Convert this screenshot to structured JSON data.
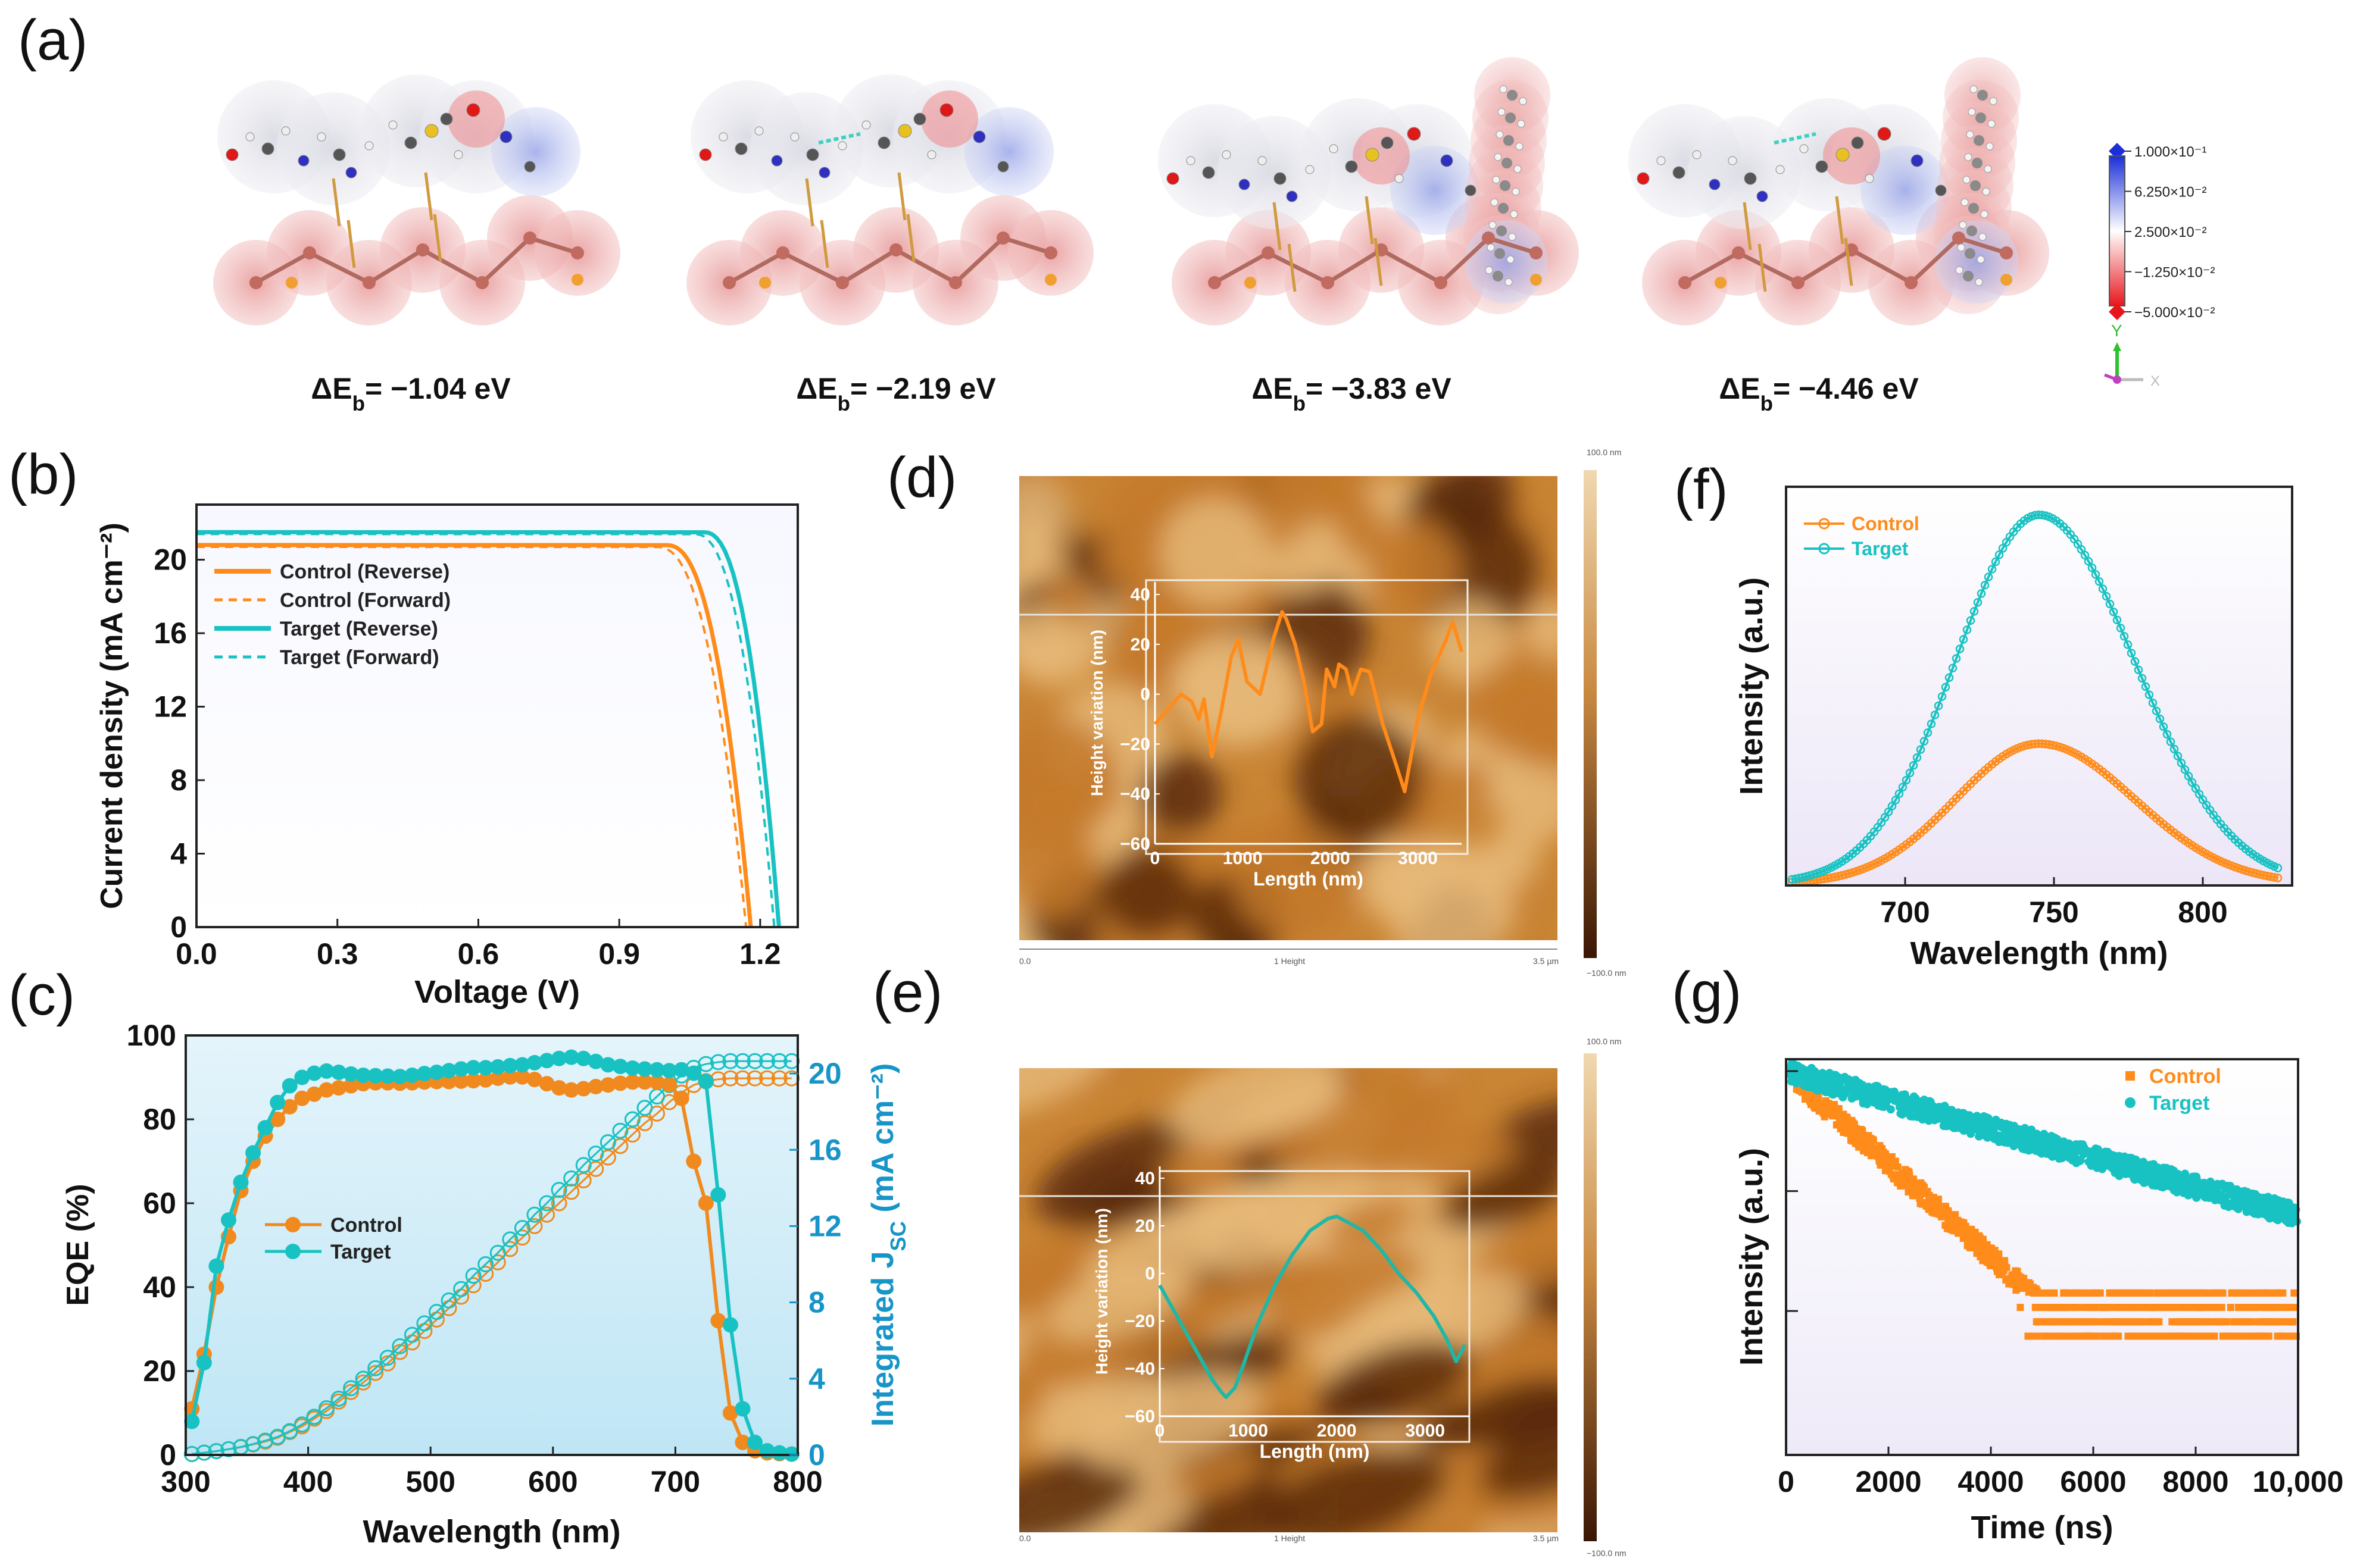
{
  "panel_labels": [
    "(a)",
    "(b)",
    "(c)",
    "(d)",
    "(e)",
    "(f)",
    "(g)"
  ],
  "molecules": {
    "energies": [
      "ΔE_b= −1.04 eV",
      "ΔE_b= −2.19 eV",
      "ΔE_b= −3.83 eV",
      "ΔE_b= −4.46 eV"
    ],
    "colorbar_ticks": [
      "1.000×10⁻¹",
      "6.250×10⁻²",
      "2.500×10⁻²",
      "−1.250×10⁻²",
      "−5.000×10⁻²"
    ],
    "axis_labels": [
      "Y",
      "X"
    ]
  },
  "afm": {
    "scale_max": "100.0 nm",
    "scale_min": "−100.0 nm",
    "footer_left": "0.0",
    "footer_mid": "1 Height",
    "footer_right": "3.5 µm",
    "colors": {
      "light": "#e6b878",
      "mid": "#c47a2c",
      "dark": "#5a2a08"
    }
  },
  "chart_data": [
    {
      "panel": "(b)",
      "type": "line",
      "xlabel": "Voltage (V)",
      "ylabel": "Current density (mA cm⁻²)",
      "xlim": [
        0,
        1.28
      ],
      "ylim": [
        0,
        23
      ],
      "xticks": [
        "0.0",
        "0.3",
        "0.6",
        "0.9",
        "1.2"
      ],
      "yticks": [
        "0",
        "4",
        "8",
        "12",
        "16",
        "20"
      ],
      "series": [
        {
          "name": "Control (Reverse)",
          "color": "#ff8c1a",
          "style": "solid",
          "jsc": 20.8,
          "voc": 1.18,
          "knee_v": 1.0
        },
        {
          "name": "Control (Forward)",
          "color": "#ff8c1a",
          "style": "dashed",
          "jsc": 20.7,
          "voc": 1.17,
          "knee_v": 0.98
        },
        {
          "name": "Target (Reverse)",
          "color": "#19c2c2",
          "style": "solid",
          "jsc": 21.5,
          "voc": 1.24,
          "knee_v": 1.08
        },
        {
          "name": "Target (Forward)",
          "color": "#19c2c2",
          "style": "dashed",
          "jsc": 21.4,
          "voc": 1.23,
          "knee_v": 1.06
        }
      ]
    },
    {
      "panel": "(c)",
      "type": "line",
      "xlabel": "Wavelength (nm)",
      "ylabel": "EQE (%)",
      "ylabel_right": "Integrated J_SC (mA cm⁻²)",
      "xlim": [
        300,
        800
      ],
      "ylim": [
        0,
        100
      ],
      "ylim_right": [
        0,
        22
      ],
      "xticks": [
        "300",
        "400",
        "500",
        "600",
        "700",
        "800"
      ],
      "yticks": [
        "0",
        "20",
        "40",
        "60",
        "80",
        "100"
      ],
      "yticks_right": [
        "0",
        "4",
        "8",
        "12",
        "16",
        "20"
      ],
      "x": [
        305,
        315,
        325,
        335,
        345,
        355,
        365,
        375,
        385,
        395,
        405,
        415,
        425,
        435,
        445,
        455,
        465,
        475,
        485,
        495,
        505,
        515,
        525,
        535,
        545,
        555,
        565,
        575,
        585,
        595,
        605,
        615,
        625,
        635,
        645,
        655,
        665,
        675,
        685,
        695,
        705,
        715,
        725,
        735,
        745,
        755,
        765,
        775,
        785,
        795
      ],
      "series": [
        {
          "name": "Control",
          "color": "#f08a1e",
          "eqe": [
            11,
            24,
            40,
            52,
            63,
            70,
            76,
            80,
            83,
            85,
            86,
            87,
            87.5,
            88,
            88.5,
            88.7,
            88.7,
            88.6,
            88.7,
            88.9,
            89,
            89,
            89.1,
            89.2,
            89.4,
            89.8,
            90.1,
            90.1,
            89.5,
            88.5,
            87.5,
            87,
            87.3,
            87.8,
            88.2,
            88.6,
            88.9,
            88.9,
            88.8,
            88.3,
            85,
            70,
            60,
            32,
            10,
            3,
            1,
            0.5,
            0.3,
            0.2
          ],
          "jsc": [
            0.05,
            0.12,
            0.2,
            0.3,
            0.4,
            0.55,
            0.7,
            0.9,
            1.2,
            1.5,
            1.9,
            2.3,
            2.8,
            3.3,
            3.8,
            4.3,
            4.8,
            5.4,
            5.9,
            6.5,
            7.1,
            7.7,
            8.3,
            8.9,
            9.5,
            10.1,
            10.8,
            11.4,
            12.0,
            12.6,
            13.2,
            13.8,
            14.4,
            15.0,
            15.6,
            16.2,
            16.8,
            17.4,
            17.9,
            18.5,
            19.0,
            19.4,
            19.6,
            19.7,
            19.75,
            19.75,
            19.75,
            19.75,
            19.75,
            19.75
          ]
        },
        {
          "name": "Target",
          "color": "#19c2c2",
          "eqe": [
            8,
            22,
            45,
            56,
            65,
            72,
            78,
            84,
            88,
            90,
            91,
            91.5,
            91.2,
            90.8,
            90.5,
            90.4,
            90.3,
            90.2,
            90.5,
            90.9,
            91.2,
            91.6,
            92,
            92.3,
            92.3,
            92.5,
            92.8,
            93,
            93.5,
            94,
            94.5,
            94.8,
            94.5,
            93.8,
            93,
            92.6,
            92.2,
            92,
            91.8,
            91.6,
            91.8,
            91,
            89,
            62,
            31,
            11,
            3,
            1,
            0.5,
            0.2
          ],
          "jsc": [
            0.05,
            0.12,
            0.2,
            0.3,
            0.42,
            0.57,
            0.75,
            0.95,
            1.25,
            1.6,
            2.0,
            2.45,
            2.95,
            3.5,
            4.0,
            4.55,
            5.1,
            5.7,
            6.3,
            6.9,
            7.5,
            8.1,
            8.7,
            9.4,
            10.0,
            10.6,
            11.3,
            11.9,
            12.6,
            13.2,
            13.9,
            14.5,
            15.2,
            15.8,
            16.4,
            17.0,
            17.6,
            18.2,
            18.8,
            19.4,
            19.9,
            20.3,
            20.5,
            20.6,
            20.65,
            20.65,
            20.65,
            20.65,
            20.65,
            20.65
          ]
        }
      ]
    },
    {
      "panel": "(d)",
      "type": "line",
      "xlabel": "Length (nm)",
      "ylabel": "Height variation (nm)",
      "xlim": [
        0,
        3500
      ],
      "ylim": [
        -60,
        45
      ],
      "xticks": [
        "0",
        "1000",
        "2000",
        "3000"
      ],
      "yticks": [
        "−60",
        "−40",
        "−20",
        "0",
        "20",
        "40"
      ],
      "series": [
        {
          "color": "#ff8c1a",
          "x": [
            0,
            150,
            300,
            420,
            500,
            560,
            650,
            750,
            870,
            950,
            1050,
            1200,
            1350,
            1450,
            1500,
            1600,
            1700,
            1800,
            1900,
            1960,
            2050,
            2100,
            2180,
            2250,
            2350,
            2450,
            2600,
            2750,
            2850,
            3000,
            3150,
            3300,
            3400,
            3500
          ],
          "y": [
            -12,
            -6,
            0,
            -3,
            -10,
            -2,
            -25,
            -8,
            15,
            22,
            5,
            0,
            22,
            33,
            30,
            20,
            5,
            -15,
            -12,
            10,
            3,
            12,
            10,
            0,
            10,
            9,
            -12,
            -28,
            -39,
            -10,
            8,
            20,
            29,
            17
          ]
        }
      ]
    },
    {
      "panel": "(e)",
      "type": "line",
      "xlabel": "Length (nm)",
      "ylabel": "Height variation (nm)",
      "xlim": [
        0,
        3500
      ],
      "ylim": [
        -60,
        45
      ],
      "xticks": [
        "0",
        "1000",
        "2000",
        "3000"
      ],
      "yticks": [
        "−60",
        "−40",
        "−20",
        "0",
        "20",
        "40"
      ],
      "series": [
        {
          "color": "#1fb7a6",
          "x": [
            0,
            150,
            300,
            450,
            600,
            700,
            750,
            850,
            950,
            1100,
            1300,
            1500,
            1700,
            1900,
            2000,
            2100,
            2300,
            2500,
            2700,
            2900,
            3100,
            3250,
            3350,
            3450
          ],
          "y": [
            -5,
            -15,
            -25,
            -35,
            -45,
            -50,
            -52,
            -48,
            -38,
            -22,
            -5,
            8,
            18,
            23,
            24,
            22,
            18,
            10,
            0,
            -8,
            -18,
            -28,
            -37,
            -30
          ]
        }
      ]
    },
    {
      "panel": "(f)",
      "type": "scatter",
      "xlabel": "Wavelength (nm)",
      "ylabel": "Intensity (a.u.)",
      "xlim": [
        660,
        830
      ],
      "ylim": [
        0,
        1.08
      ],
      "xticks": [
        "700",
        "750",
        "800"
      ],
      "series": [
        {
          "name": "Control",
          "color": "#ff8c1a",
          "peak_nm": 745,
          "peak": 0.38
        },
        {
          "name": "Target",
          "color": "#19c2c2",
          "peak_nm": 745,
          "peak": 1.0
        }
      ]
    },
    {
      "panel": "(g)",
      "type": "scatter",
      "xlabel": "Time (ns)",
      "ylabel": "Intensity (a.u.)",
      "xlim": [
        0,
        10000
      ],
      "yscale": "log",
      "xticks": [
        "0",
        "2000",
        "4000",
        "6000",
        "8000",
        "10,000"
      ],
      "series": [
        {
          "name": "Control",
          "color": "#ff8c1a",
          "tau_ns": 1400,
          "marker": "square"
        },
        {
          "name": "Target",
          "color": "#19c2c2",
          "tau_ns": 3600,
          "marker": "circle"
        }
      ]
    }
  ]
}
